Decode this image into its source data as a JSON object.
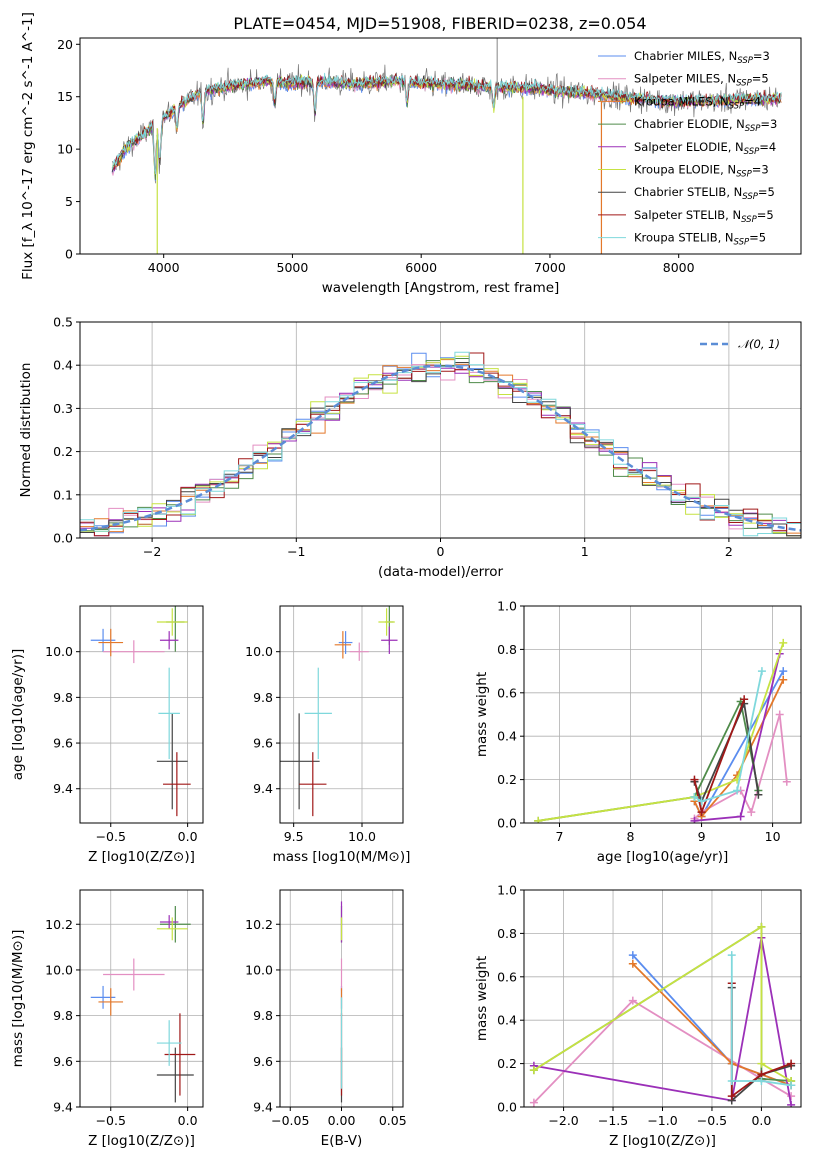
{
  "figure": {
    "title": "PLATE=0454, MJD=51908, FIBERID=0238, z=0.054"
  },
  "colors": {
    "Chabrier MILES": "#5b8def",
    "Salpeter MILES": "#e38fc2",
    "Kroupa MILES": "#e3782a",
    "Chabrier ELODIE": "#4f8b4a",
    "Salpeter ELODIE": "#9b30b8",
    "Kroupa ELODIE": "#c6e242",
    "Chabrier STELIB": "#444444",
    "Salpeter STELIB": "#a01818",
    "Kroupa STELIB": "#7fd8dc",
    "data": "#777777",
    "normal": "#5b8dd6",
    "grid": "#b0b0b0"
  },
  "chart_data": [
    {
      "id": "spectrum",
      "type": "line",
      "title": "PLATE=0454, MJD=51908, FIBERID=0238, z=0.054",
      "xlabel": "wavelength [Angstrom, rest frame]",
      "ylabel": "Flux [f_λ 10^-17 erg cm^-2 s^-1 A^-1]",
      "xlim": [
        3350,
        8950
      ],
      "ylim": [
        0,
        20.6
      ],
      "xticks": [
        4000,
        5000,
        6000,
        7000,
        8000
      ],
      "yticks": [
        0,
        5,
        10,
        15,
        20
      ],
      "grid": false,
      "legend_position": "top-right",
      "continuum": [
        [
          3600,
          8
        ],
        [
          3700,
          10
        ],
        [
          3850,
          11.5
        ],
        [
          3950,
          12.5
        ],
        [
          4100,
          14
        ],
        [
          4300,
          15.5
        ],
        [
          4500,
          16
        ],
        [
          4800,
          16.5
        ],
        [
          5000,
          16.3
        ],
        [
          5200,
          16.5
        ],
        [
          5500,
          16.2
        ],
        [
          5800,
          16.5
        ],
        [
          6000,
          16.2
        ],
        [
          6300,
          16.1
        ],
        [
          6600,
          15.9
        ],
        [
          6900,
          15.8
        ],
        [
          7100,
          15.5
        ],
        [
          7400,
          15.2
        ],
        [
          7700,
          14.8
        ],
        [
          8000,
          14.5
        ],
        [
          8300,
          14.6
        ],
        [
          8500,
          14.8
        ],
        [
          8800,
          14.8
        ]
      ],
      "legend": [
        {
          "name": "Chabrier MILES",
          "nssp": "3"
        },
        {
          "name": "Salpeter MILES",
          "nssp": "5"
        },
        {
          "name": "Kroupa MILES",
          "nssp": "4"
        },
        {
          "name": "Chabrier ELODIE",
          "nssp": "3"
        },
        {
          "name": "Salpeter ELODIE",
          "nssp": "4"
        },
        {
          "name": "Kroupa ELODIE",
          "nssp": "3"
        },
        {
          "name": "Chabrier STELIB",
          "nssp": "5"
        },
        {
          "name": "Salpeter STELIB",
          "nssp": "5"
        },
        {
          "name": "Kroupa STELIB",
          "nssp": "5"
        }
      ]
    },
    {
      "id": "residuals",
      "type": "step",
      "xlabel": "(data-model)/error",
      "ylabel": "Normed distribution",
      "xlim": [
        -2.5,
        2.5
      ],
      "ylim": [
        0,
        0.5
      ],
      "xticks": [
        -2,
        -1,
        0,
        1,
        2
      ],
      "xtick_labels": [
        "−2",
        "−1",
        "0",
        "1",
        "2"
      ],
      "yticks": [
        0,
        0.1,
        0.2,
        0.3,
        0.4,
        0.5
      ],
      "ytick_labels": [
        "0.0",
        "0.1",
        "0.2",
        "0.3",
        "0.4",
        "0.5"
      ],
      "grid": true,
      "legend": "𝒩(0, 1)",
      "bin_width": 0.1
    },
    {
      "id": "age-vs-Z",
      "type": "errorbar",
      "xlabel": "Z [log10(Z/Z⊙)]",
      "ylabel": "age [log10(age/yr)]",
      "xlim": [
        -0.7,
        0.1
      ],
      "ylim": [
        9.25,
        10.2
      ],
      "xticks": [
        -0.5,
        0.0
      ],
      "xtick_labels": [
        "−0.5",
        "0.0"
      ],
      "yticks": [
        9.4,
        9.6,
        9.8,
        10.0
      ],
      "ytick_labels": [
        "9.4",
        "9.6",
        "9.8",
        "10.0"
      ],
      "grid": true,
      "points": [
        {
          "series": "Chabrier MILES",
          "x": -0.55,
          "xerr": 0.08,
          "y": 10.05,
          "yerr": 0.05
        },
        {
          "series": "Salpeter MILES",
          "x": -0.35,
          "xerr": 0.2,
          "y": 10.0,
          "yerr": 0.05
        },
        {
          "series": "Kroupa MILES",
          "x": -0.5,
          "xerr": 0.08,
          "y": 10.04,
          "yerr": 0.06
        },
        {
          "series": "Chabrier ELODIE",
          "x": -0.08,
          "xerr": 0.06,
          "y": 10.13,
          "yerr": 0.13
        },
        {
          "series": "Salpeter ELODIE",
          "x": -0.12,
          "xerr": 0.06,
          "y": 10.05,
          "yerr": 0.04
        },
        {
          "series": "Kroupa ELODIE",
          "x": -0.1,
          "xerr": 0.1,
          "y": 10.13,
          "yerr": 0.06
        },
        {
          "series": "Chabrier STELIB",
          "x": -0.1,
          "xerr": 0.1,
          "y": 9.52,
          "yerr": 0.21
        },
        {
          "series": "Salpeter STELIB",
          "x": -0.07,
          "xerr": 0.09,
          "y": 9.42,
          "yerr": 0.14
        },
        {
          "series": "Kroupa STELIB",
          "x": -0.12,
          "xerr": 0.07,
          "y": 9.73,
          "yerr": 0.2
        }
      ]
    },
    {
      "id": "age-vs-mass",
      "type": "errorbar",
      "xlabel": "mass [log10(M/M⊙)]",
      "ylabel": "",
      "xlim": [
        9.4,
        10.3
      ],
      "ylim": [
        9.25,
        10.2
      ],
      "xticks": [
        9.5,
        10.0
      ],
      "xtick_labels": [
        "9.5",
        "10.0"
      ],
      "yticks": [
        9.4,
        9.6,
        9.8,
        10.0
      ],
      "ytick_labels": [
        "9.4",
        "9.6",
        "9.8",
        "10.0"
      ],
      "grid": true,
      "points": [
        {
          "series": "Chabrier MILES",
          "x": 9.88,
          "xerr": 0.05,
          "y": 10.04,
          "yerr": 0.05
        },
        {
          "series": "Salpeter MILES",
          "x": 9.98,
          "xerr": 0.07,
          "y": 10.0,
          "yerr": 0.04
        },
        {
          "series": "Kroupa MILES",
          "x": 9.86,
          "xerr": 0.06,
          "y": 10.03,
          "yerr": 0.06
        },
        {
          "series": "Chabrier ELODIE",
          "x": 10.2,
          "xerr": 0.03,
          "y": 10.13,
          "yerr": 0.1
        },
        {
          "series": "Salpeter ELODIE",
          "x": 10.2,
          "xerr": 0.06,
          "y": 10.05,
          "yerr": 0.06
        },
        {
          "series": "Kroupa ELODIE",
          "x": 10.18,
          "xerr": 0.06,
          "y": 10.13,
          "yerr": 0.06
        },
        {
          "series": "Chabrier STELIB",
          "x": 9.54,
          "xerr": 0.15,
          "y": 9.52,
          "yerr": 0.21
        },
        {
          "series": "Salpeter STELIB",
          "x": 9.64,
          "xerr": 0.1,
          "y": 9.42,
          "yerr": 0.14
        },
        {
          "series": "Kroupa STELIB",
          "x": 9.68,
          "xerr": 0.1,
          "y": 9.73,
          "yerr": 0.2
        }
      ]
    },
    {
      "id": "weight-vs-age",
      "type": "line",
      "xlabel": "age [log10(age/yr)]",
      "ylabel": "mass weight",
      "xlim": [
        6.5,
        10.4
      ],
      "ylim": [
        0,
        1.0
      ],
      "xticks": [
        7,
        8,
        9,
        10
      ],
      "yticks": [
        0,
        0.2,
        0.4,
        0.6,
        0.8,
        1.0
      ],
      "ytick_labels": [
        "0.0",
        "0.2",
        "0.4",
        "0.6",
        "0.8",
        "1.0"
      ],
      "grid": true,
      "series": [
        {
          "series": "Chabrier MILES",
          "points": [
            [
              8.9,
              0.1
            ],
            [
              9.0,
              0.03
            ],
            [
              10.15,
              0.7
            ]
          ]
        },
        {
          "series": "Salpeter MILES",
          "points": [
            [
              8.9,
              0.02
            ],
            [
              9.0,
              0.05
            ],
            [
              9.55,
              0.15
            ],
            [
              9.7,
              0.05
            ],
            [
              10.1,
              0.5
            ],
            [
              10.2,
              0.19
            ]
          ]
        },
        {
          "series": "Kroupa MILES",
          "points": [
            [
              8.9,
              0.1
            ],
            [
              9.0,
              0.03
            ],
            [
              9.5,
              0.22
            ],
            [
              10.15,
              0.66
            ]
          ]
        },
        {
          "series": "Chabrier ELODIE",
          "points": [
            [
              6.7,
              0.01
            ],
            [
              8.9,
              0.12
            ],
            [
              9.55,
              0.56
            ],
            [
              9.8,
              0.15
            ]
          ]
        },
        {
          "series": "Salpeter ELODIE",
          "points": [
            [
              8.9,
              0.01
            ],
            [
              9.55,
              0.03
            ],
            [
              10.1,
              0.78
            ]
          ]
        },
        {
          "series": "Kroupa ELODIE",
          "points": [
            [
              6.7,
              0.01
            ],
            [
              8.9,
              0.12
            ],
            [
              9.5,
              0.2
            ],
            [
              10.15,
              0.83
            ]
          ]
        },
        {
          "series": "Chabrier STELIB",
          "points": [
            [
              8.9,
              0.19
            ],
            [
              9.0,
              0.1
            ],
            [
              9.6,
              0.55
            ],
            [
              9.8,
              0.13
            ]
          ]
        },
        {
          "series": "Salpeter STELIB",
          "points": [
            [
              8.9,
              0.2
            ],
            [
              9.0,
              0.05
            ],
            [
              9.6,
              0.57
            ]
          ]
        },
        {
          "series": "Kroupa STELIB",
          "points": [
            [
              8.9,
              0.12
            ],
            [
              9.0,
              0.1
            ],
            [
              9.5,
              0.15
            ],
            [
              9.85,
              0.7
            ]
          ]
        }
      ]
    },
    {
      "id": "mass-vs-Z",
      "type": "errorbar",
      "xlabel": "Z [log10(Z/Z⊙)]",
      "ylabel": "mass [log10(M/M⊙)]",
      "xlim": [
        -0.7,
        0.1
      ],
      "ylim": [
        9.4,
        10.35
      ],
      "xticks": [
        -0.5,
        0.0
      ],
      "xtick_labels": [
        "−0.5",
        "0.0"
      ],
      "yticks": [
        9.4,
        9.6,
        9.8,
        10.0,
        10.2
      ],
      "ytick_labels": [
        "9.4",
        "9.6",
        "9.8",
        "10.0",
        "10.2"
      ],
      "grid": true,
      "points": [
        {
          "series": "Chabrier MILES",
          "x": -0.55,
          "xerr": 0.08,
          "y": 9.88,
          "yerr": 0.05
        },
        {
          "series": "Salpeter MILES",
          "x": -0.35,
          "xerr": 0.2,
          "y": 9.98,
          "yerr": 0.07
        },
        {
          "series": "Kroupa MILES",
          "x": -0.5,
          "xerr": 0.08,
          "y": 9.86,
          "yerr": 0.06
        },
        {
          "series": "Chabrier ELODIE",
          "x": -0.08,
          "xerr": 0.1,
          "y": 10.2,
          "yerr": 0.08
        },
        {
          "series": "Salpeter ELODIE",
          "x": -0.12,
          "xerr": 0.06,
          "y": 10.21,
          "yerr": 0.03
        },
        {
          "series": "Kroupa ELODIE",
          "x": -0.1,
          "xerr": 0.1,
          "y": 10.18,
          "yerr": 0.05
        },
        {
          "series": "Chabrier STELIB",
          "x": -0.08,
          "xerr": 0.12,
          "y": 9.54,
          "yerr": 0.12
        },
        {
          "series": "Salpeter STELIB",
          "x": -0.05,
          "xerr": 0.1,
          "y": 9.63,
          "yerr": 0.18
        },
        {
          "series": "Kroupa STELIB",
          "x": -0.12,
          "xerr": 0.08,
          "y": 9.68,
          "yerr": 0.1
        }
      ]
    },
    {
      "id": "mass-vs-EBV",
      "type": "errorbar",
      "xlabel": "E(B-V)",
      "ylabel": "",
      "xlim": [
        -0.06,
        0.06
      ],
      "ylim": [
        9.4,
        10.35
      ],
      "xticks": [
        -0.05,
        0,
        0.05
      ],
      "xtick_labels": [
        "−0.05",
        "0.00",
        "0.05"
      ],
      "yticks": [
        9.4,
        9.6,
        9.8,
        10.0,
        10.2
      ],
      "ytick_labels": [
        "9.4",
        "9.6",
        "9.8",
        "10.0",
        "10.2"
      ],
      "grid": true,
      "points": [
        {
          "series": "Chabrier MILES",
          "x": 0,
          "xerr": 0,
          "y": 9.88,
          "yerr": 0.05
        },
        {
          "series": "Salpeter MILES",
          "x": 0,
          "xerr": 0,
          "y": 9.98,
          "yerr": 0.07
        },
        {
          "series": "Kroupa MILES",
          "x": 0,
          "xerr": 0,
          "y": 9.86,
          "yerr": 0.06
        },
        {
          "series": "Chabrier ELODIE",
          "x": 0,
          "xerr": 0,
          "y": 10.2,
          "yerr": 0.08
        },
        {
          "series": "Salpeter ELODIE",
          "x": 0,
          "xerr": 0,
          "y": 10.21,
          "yerr": 0.09
        },
        {
          "series": "Kroupa ELODIE",
          "x": 0,
          "xerr": 0,
          "y": 10.18,
          "yerr": 0.05
        },
        {
          "series": "Chabrier STELIB",
          "x": 0,
          "xerr": 0,
          "y": 9.54,
          "yerr": 0.12
        },
        {
          "series": "Salpeter STELIB",
          "x": 0,
          "xerr": 0,
          "y": 9.63,
          "yerr": 0.18
        },
        {
          "series": "Kroupa STELIB",
          "x": 0,
          "xerr": 0,
          "y": 9.68,
          "yerr": 0.2
        }
      ]
    },
    {
      "id": "weight-vs-Z",
      "type": "line",
      "xlabel": "Z [log10(Z/Z⊙)]",
      "ylabel": "mass weight",
      "xlim": [
        -2.4,
        0.4
      ],
      "ylim": [
        0,
        1.0
      ],
      "xticks": [
        -2.0,
        -1.5,
        -1.0,
        -0.5,
        0.0
      ],
      "xtick_labels": [
        "−2.0",
        "−1.5",
        "−1.0",
        "−0.5",
        "0.0"
      ],
      "yticks": [
        0,
        0.2,
        0.4,
        0.6,
        0.8,
        1.0
      ],
      "ytick_labels": [
        "0.0",
        "0.2",
        "0.4",
        "0.6",
        "0.8",
        "1.0"
      ],
      "grid": true,
      "series": [
        {
          "series": "Chabrier MILES",
          "points": [
            [
              -1.3,
              0.7
            ],
            [
              -0.3,
              0.2
            ],
            [
              0.3,
              0.1
            ]
          ]
        },
        {
          "series": "Salpeter MILES",
          "points": [
            [
              -2.3,
              0.02
            ],
            [
              -1.3,
              0.49
            ],
            [
              0.0,
              0.13
            ],
            [
              0.3,
              0.05
            ]
          ]
        },
        {
          "series": "Kroupa MILES",
          "points": [
            [
              -1.3,
              0.66
            ],
            [
              -0.3,
              0.2
            ],
            [
              0.3,
              0.1
            ]
          ]
        },
        {
          "series": "Chabrier ELODIE",
          "points": [
            [
              -2.3,
              0.17
            ],
            [
              0.0,
              0.83
            ],
            [
              0.0,
              0.13
            ],
            [
              0.3,
              0.12
            ]
          ]
        },
        {
          "series": "Salpeter ELODIE",
          "points": [
            [
              -2.3,
              0.19
            ],
            [
              -0.3,
              0.03
            ],
            [
              0.0,
              0.78
            ],
            [
              0.3,
              0.01
            ]
          ]
        },
        {
          "series": "Kroupa ELODIE",
          "points": [
            [
              -2.3,
              0.17
            ],
            [
              0.0,
              0.83
            ],
            [
              0.0,
              0.2
            ],
            [
              0.3,
              0.12
            ]
          ]
        },
        {
          "series": "Chabrier STELIB",
          "points": [
            [
              -0.3,
              0.55
            ],
            [
              -0.3,
              0.03
            ],
            [
              0.0,
              0.15
            ],
            [
              0.3,
              0.19
            ]
          ]
        },
        {
          "series": "Salpeter STELIB",
          "points": [
            [
              -0.3,
              0.57
            ],
            [
              -0.3,
              0.05
            ],
            [
              0.0,
              0.15
            ],
            [
              0.3,
              0.2
            ]
          ]
        },
        {
          "series": "Kroupa STELIB",
          "points": [
            [
              -0.3,
              0.7
            ],
            [
              -0.3,
              0.12
            ],
            [
              0.0,
              0.12
            ],
            [
              0.3,
              0.1
            ]
          ]
        }
      ]
    }
  ]
}
